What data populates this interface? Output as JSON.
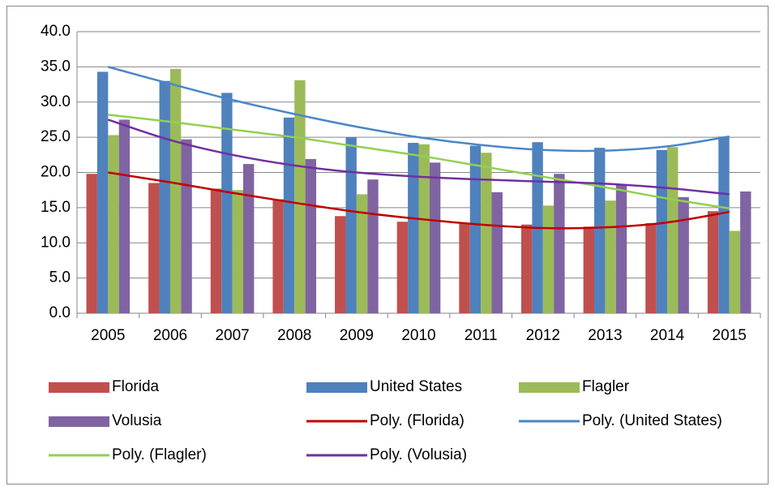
{
  "chart_data": {
    "type": "bar",
    "categories": [
      "2005",
      "2006",
      "2007",
      "2008",
      "2009",
      "2010",
      "2011",
      "2012",
      "2013",
      "2014",
      "2015"
    ],
    "ylim": [
      0,
      40
    ],
    "yticks": [
      {
        "value": 0,
        "label": "0.0"
      },
      {
        "value": 5,
        "label": "5.0"
      },
      {
        "value": 10,
        "label": "10.0"
      },
      {
        "value": 15,
        "label": "15.0"
      },
      {
        "value": 20,
        "label": "20.0"
      },
      {
        "value": 25,
        "label": "25.0"
      },
      {
        "value": 30,
        "label": "30.0"
      },
      {
        "value": 35,
        "label": "35.0"
      },
      {
        "value": 40,
        "label": "40.0"
      }
    ],
    "grid": true,
    "legend": "bottom",
    "series": [
      {
        "name": "Florida",
        "type": "bar",
        "color": "#c0504d",
        "values": [
          19.8,
          18.5,
          17.7,
          16.2,
          13.8,
          13.0,
          12.7,
          12.6,
          12.3,
          12.8,
          14.5
        ]
      },
      {
        "name": "United States",
        "type": "bar",
        "color": "#4f81bd",
        "values": [
          34.3,
          33.0,
          31.3,
          27.8,
          25.0,
          24.2,
          23.8,
          24.3,
          23.5,
          23.2,
          25.1
        ]
      },
      {
        "name": "Flagler",
        "type": "bar",
        "color": "#9bbb59",
        "values": [
          25.3,
          34.7,
          17.5,
          33.1,
          16.9,
          24.0,
          22.8,
          15.3,
          16.0,
          23.6,
          11.7
        ]
      },
      {
        "name": "Volusia",
        "type": "bar",
        "color": "#8064a2",
        "values": [
          27.5,
          24.7,
          21.2,
          21.9,
          19.0,
          21.4,
          17.2,
          19.8,
          18.3,
          16.5,
          17.3
        ]
      },
      {
        "name": "Poly. (Florida)",
        "type": "line",
        "color": "#c00000",
        "values": [
          20.0,
          18.6,
          17.1,
          15.7,
          14.4,
          13.4,
          12.6,
          12.1,
          12.2,
          12.9,
          14.4
        ]
      },
      {
        "name": "Poly. (United States)",
        "type": "line",
        "color": "#4a86c8",
        "values": [
          35.0,
          32.6,
          30.3,
          28.3,
          26.5,
          25.0,
          23.9,
          23.2,
          23.1,
          23.7,
          25.1
        ]
      },
      {
        "name": "Poly. (Flagler)",
        "type": "line",
        "color": "#92d050",
        "values": [
          28.2,
          27.2,
          26.1,
          25.0,
          23.7,
          22.4,
          20.9,
          19.4,
          17.9,
          16.3,
          14.9
        ]
      },
      {
        "name": "Poly. (Volusia)",
        "type": "line",
        "color": "#7030a0",
        "values": [
          27.5,
          24.6,
          22.5,
          21.0,
          20.0,
          19.4,
          19.0,
          18.7,
          18.4,
          17.8,
          16.9
        ]
      }
    ]
  }
}
